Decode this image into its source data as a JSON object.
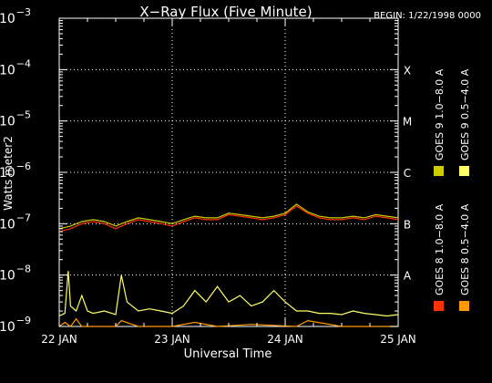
{
  "chart_data": {
    "type": "line",
    "title": "X−Ray Flux (Five Minute)",
    "begin_label": "BEGIN: 1/22/1998 0000",
    "xlabel": "Universal Time",
    "ylabel": "Watts meter2",
    "y_scale": "log",
    "ylim": [
      1e-09,
      0.001
    ],
    "y_ticks": [
      {
        "value": 1e-09,
        "base": "10",
        "exp": "−9"
      },
      {
        "value": 1e-08,
        "base": "10",
        "exp": "−8"
      },
      {
        "value": 1e-07,
        "base": "10",
        "exp": "−7"
      },
      {
        "value": 1e-06,
        "base": "10",
        "exp": "−6"
      },
      {
        "value": 1e-05,
        "base": "10",
        "exp": "−5"
      },
      {
        "value": 0.0001,
        "base": "10",
        "exp": "−4"
      },
      {
        "value": 0.001,
        "base": "10",
        "exp": "−3"
      }
    ],
    "flare_classes": [
      {
        "label": "A",
        "value": 1e-08
      },
      {
        "label": "B",
        "value": 1e-07
      },
      {
        "label": "C",
        "value": 1e-06
      },
      {
        "label": "M",
        "value": 1e-05
      },
      {
        "label": "X",
        "value": 0.0001
      }
    ],
    "x_range": [
      "1998-01-22",
      "1998-01-25"
    ],
    "x_ticks": [
      {
        "label": "22 JAN",
        "day": 0
      },
      {
        "label": "23 JAN",
        "day": 1
      },
      {
        "label": "24 JAN",
        "day": 2
      },
      {
        "label": "25 JAN",
        "day": 3
      }
    ],
    "grid": "dotted",
    "legend_position": "right-vertical",
    "series": [
      {
        "name": "GOES 8 1.0−8.0 A",
        "color": "#ff3300",
        "x_days": [
          0,
          0.1,
          0.2,
          0.3,
          0.4,
          0.5,
          0.6,
          0.7,
          0.8,
          0.9,
          1.0,
          1.1,
          1.2,
          1.3,
          1.4,
          1.5,
          1.6,
          1.7,
          1.8,
          1.9,
          2.0,
          2.1,
          2.2,
          2.3,
          2.4,
          2.5,
          2.6,
          2.7,
          2.8,
          2.9,
          3.0
        ],
        "values": [
          7e-08,
          8e-08,
          1e-07,
          1.1e-07,
          1e-07,
          8e-08,
          1e-07,
          1.2e-07,
          1.1e-07,
          1e-07,
          9e-08,
          1.1e-07,
          1.3e-07,
          1.2e-07,
          1.2e-07,
          1.5e-07,
          1.4e-07,
          1.3e-07,
          1.2e-07,
          1.3e-07,
          1.5e-07,
          2.2e-07,
          1.6e-07,
          1.3e-07,
          1.2e-07,
          1.2e-07,
          1.3e-07,
          1.2e-07,
          1.4e-07,
          1.3e-07,
          1.2e-07
        ]
      },
      {
        "name": "GOES 8 0.5−4.0 A",
        "color": "#ff9900",
        "x_days": [
          0,
          0.05,
          0.1,
          0.15,
          0.2,
          0.5,
          0.55,
          0.7,
          1.0,
          1.2,
          1.4,
          1.7,
          2.1,
          2.2,
          2.5,
          2.9,
          3.0
        ],
        "values": [
          1e-09,
          1.2e-09,
          1e-09,
          1.4e-09,
          1e-09,
          1e-09,
          1.3e-09,
          1e-09,
          1e-09,
          1.2e-09,
          1e-09,
          1.1e-09,
          1e-09,
          1.3e-09,
          1e-09,
          1e-09,
          1e-09
        ]
      },
      {
        "name": "GOES 9 1.0−8.0 A",
        "color": "#cccc00",
        "x_days": [
          0,
          0.1,
          0.2,
          0.3,
          0.4,
          0.5,
          0.6,
          0.7,
          0.8,
          0.9,
          1.0,
          1.1,
          1.2,
          1.3,
          1.4,
          1.5,
          1.6,
          1.7,
          1.8,
          1.9,
          2.0,
          2.1,
          2.2,
          2.3,
          2.4,
          2.5,
          2.6,
          2.7,
          2.8,
          2.9,
          3.0
        ],
        "values": [
          8e-08,
          9e-08,
          1.1e-07,
          1.2e-07,
          1.1e-07,
          9e-08,
          1.1e-07,
          1.3e-07,
          1.2e-07,
          1.1e-07,
          1e-07,
          1.2e-07,
          1.4e-07,
          1.3e-07,
          1.3e-07,
          1.6e-07,
          1.5e-07,
          1.4e-07,
          1.3e-07,
          1.4e-07,
          1.6e-07,
          2.4e-07,
          1.7e-07,
          1.4e-07,
          1.3e-07,
          1.3e-07,
          1.4e-07,
          1.3e-07,
          1.5e-07,
          1.4e-07,
          1.3e-07
        ]
      },
      {
        "name": "GOES 9 0.5−4.0 A",
        "color": "#ffff66",
        "x_days": [
          0,
          0.05,
          0.08,
          0.1,
          0.15,
          0.2,
          0.25,
          0.3,
          0.4,
          0.5,
          0.55,
          0.6,
          0.7,
          0.8,
          0.9,
          1.0,
          1.1,
          1.2,
          1.3,
          1.4,
          1.5,
          1.6,
          1.7,
          1.8,
          1.9,
          2.0,
          2.1,
          2.2,
          2.3,
          2.4,
          2.5,
          2.6,
          2.7,
          2.8,
          2.9,
          3.0
        ],
        "values": [
          1.6e-09,
          1.8e-09,
          1.2e-08,
          2.5e-09,
          2e-09,
          4e-09,
          2e-09,
          1.8e-09,
          2e-09,
          1.7e-09,
          1e-08,
          3e-09,
          2e-09,
          2.2e-09,
          2e-09,
          1.8e-09,
          2.5e-09,
          5e-09,
          3e-09,
          6e-09,
          3e-09,
          4e-09,
          2.5e-09,
          3e-09,
          5e-09,
          3e-09,
          2e-09,
          2e-09,
          1.8e-09,
          1.8e-09,
          1.7e-09,
          2e-09,
          1.8e-09,
          1.7e-09,
          1.6e-09,
          1.7e-09
        ]
      }
    ]
  }
}
